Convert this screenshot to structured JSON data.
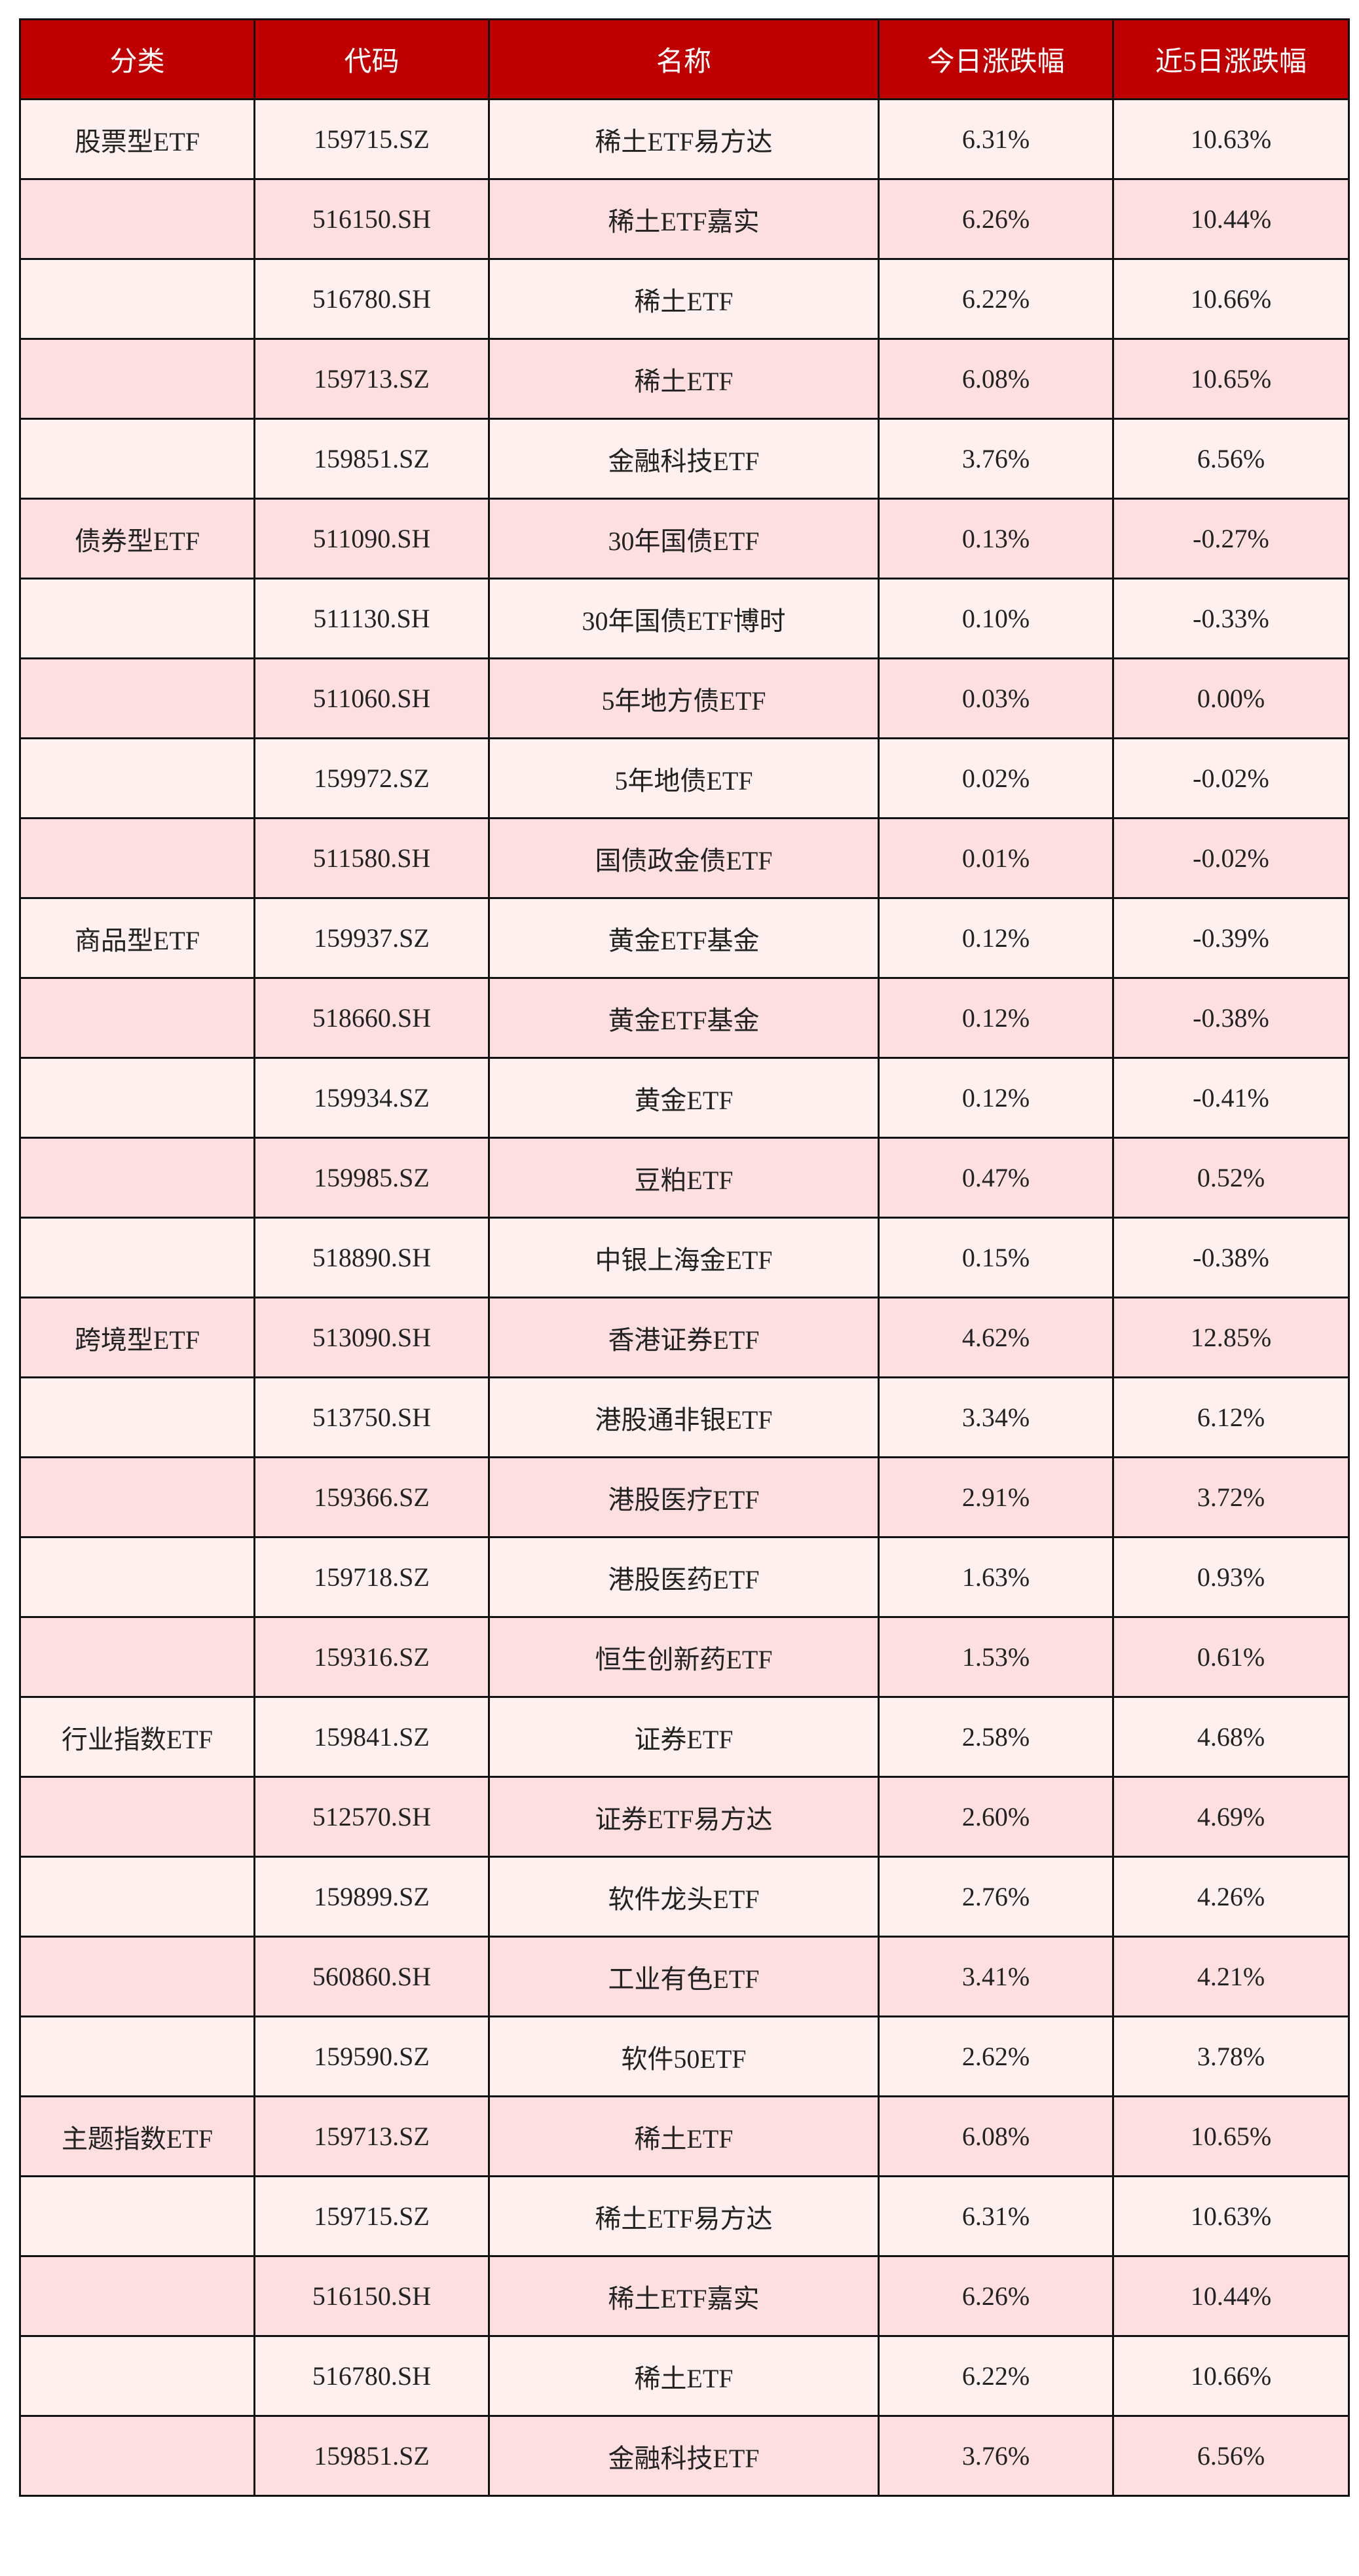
{
  "colors": {
    "header": "#C00000",
    "row_light": "#FDF0EF",
    "row_dark": "#FDDFE1"
  },
  "headers": [
    "分类",
    "代码",
    "名称",
    "今日涨跌幅",
    "近5日涨跌幅"
  ],
  "rows": [
    [
      "股票型ETF",
      "159715.SZ",
      "稀土ETF易方达",
      "6.31%",
      "10.63%"
    ],
    [
      "",
      "516150.SH",
      "稀土ETF嘉实",
      "6.26%",
      "10.44%"
    ],
    [
      "",
      "516780.SH",
      "稀土ETF",
      "6.22%",
      "10.66%"
    ],
    [
      "",
      "159713.SZ",
      "稀土ETF",
      "6.08%",
      "10.65%"
    ],
    [
      "",
      "159851.SZ",
      "金融科技ETF",
      "3.76%",
      "6.56%"
    ],
    [
      "债券型ETF",
      "511090.SH",
      "30年国债ETF",
      "0.13%",
      "-0.27%"
    ],
    [
      "",
      "511130.SH",
      "30年国债ETF博时",
      "0.10%",
      "-0.33%"
    ],
    [
      "",
      "511060.SH",
      "5年地方债ETF",
      "0.03%",
      "0.00%"
    ],
    [
      "",
      "159972.SZ",
      "5年地债ETF",
      "0.02%",
      "-0.02%"
    ],
    [
      "",
      "511580.SH",
      "国债政金债ETF",
      "0.01%",
      "-0.02%"
    ],
    [
      "商品型ETF",
      "159937.SZ",
      "黄金ETF基金",
      "0.12%",
      "-0.39%"
    ],
    [
      "",
      "518660.SH",
      "黄金ETF基金",
      "0.12%",
      "-0.38%"
    ],
    [
      "",
      "159934.SZ",
      "黄金ETF",
      "0.12%",
      "-0.41%"
    ],
    [
      "",
      "159985.SZ",
      "豆粕ETF",
      "0.47%",
      "0.52%"
    ],
    [
      "",
      "518890.SH",
      "中银上海金ETF",
      "0.15%",
      "-0.38%"
    ],
    [
      "跨境型ETF",
      "513090.SH",
      "香港证券ETF",
      "4.62%",
      "12.85%"
    ],
    [
      "",
      "513750.SH",
      "港股通非银ETF",
      "3.34%",
      "6.12%"
    ],
    [
      "",
      "159366.SZ",
      "港股医疗ETF",
      "2.91%",
      "3.72%"
    ],
    [
      "",
      "159718.SZ",
      "港股医药ETF",
      "1.63%",
      "0.93%"
    ],
    [
      "",
      "159316.SZ",
      "恒生创新药ETF",
      "1.53%",
      "0.61%"
    ],
    [
      "行业指数ETF",
      "159841.SZ",
      "证券ETF",
      "2.58%",
      "4.68%"
    ],
    [
      "",
      "512570.SH",
      "证券ETF易方达",
      "2.60%",
      "4.69%"
    ],
    [
      "",
      "159899.SZ",
      "软件龙头ETF",
      "2.76%",
      "4.26%"
    ],
    [
      "",
      "560860.SH",
      "工业有色ETF",
      "3.41%",
      "4.21%"
    ],
    [
      "",
      "159590.SZ",
      "软件50ETF",
      "2.62%",
      "3.78%"
    ],
    [
      "主题指数ETF",
      "159713.SZ",
      "稀土ETF",
      "6.08%",
      "10.65%"
    ],
    [
      "",
      "159715.SZ",
      "稀土ETF易方达",
      "6.31%",
      "10.63%"
    ],
    [
      "",
      "516150.SH",
      "稀土ETF嘉实",
      "6.26%",
      "10.44%"
    ],
    [
      "",
      "516780.SH",
      "稀土ETF",
      "6.22%",
      "10.66%"
    ],
    [
      "",
      "159851.SZ",
      "金融科技ETF",
      "3.76%",
      "6.56%"
    ]
  ]
}
